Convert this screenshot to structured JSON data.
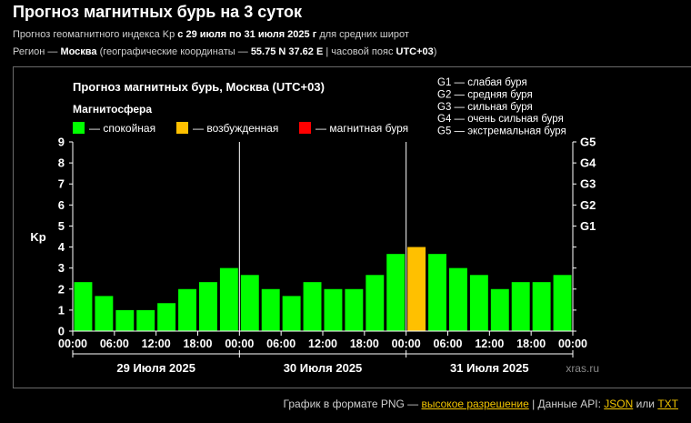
{
  "header": {
    "title": "Прогноз магнитных бурь на 3 суток",
    "line1_prefix": "Прогноз геомагнитного индекса Kp ",
    "line1_bold": "с 29 июля по 31 июля 2025 г",
    "line1_suffix": " для средних широт",
    "line2_prefix": "Регион — ",
    "line2_city": "Москва",
    "line2_mid": " (географические координаты — ",
    "line2_coords": "55.75 N 37.62 E",
    "line2_sep": " | часовой пояс ",
    "line2_tz": "UTC+03",
    "line2_end": ")"
  },
  "footer": {
    "png_text": "График в формате PNG — ",
    "png_link": "высокое разрешение",
    "api_text": "  |  Данные API: ",
    "json_link": "JSON",
    "or_text": " или ",
    "txt_link": "TXT"
  },
  "chart_data": {
    "type": "bar",
    "title": "Прогноз магнитных бурь, Москва (UTC+03)",
    "legend_title": "Магнитосфера",
    "legend": [
      {
        "label": "— спокойная",
        "color": "#00ff00"
      },
      {
        "label": "— возбужденная",
        "color": "#ffc000"
      },
      {
        "label": "— магнитная буря",
        "color": "#ff0000"
      }
    ],
    "storm_scale": [
      "G1 — слабая буря",
      "G2 — средняя буря",
      "G3 — сильная буря",
      "G4 — очень сильная буря",
      "G5 — экстремальная буря"
    ],
    "ylabel": "Kp",
    "ylim": [
      0,
      9
    ],
    "yticks": [
      "0",
      "1",
      "2",
      "3",
      "4",
      "5",
      "6",
      "7",
      "8",
      "9"
    ],
    "right_ticks": [
      {
        "label": "G1",
        "value": 5
      },
      {
        "label": "G2",
        "value": 6
      },
      {
        "label": "G3",
        "value": 7
      },
      {
        "label": "G4",
        "value": 8
      },
      {
        "label": "G5",
        "value": 9
      }
    ],
    "xticks": [
      "00:00",
      "06:00",
      "12:00",
      "18:00",
      "00:00",
      "06:00",
      "12:00",
      "18:00",
      "00:00",
      "06:00",
      "12:00",
      "18:00",
      "00:00"
    ],
    "days": [
      "29 Июля 2025",
      "30 Июля 2025",
      "31 Июля 2025"
    ],
    "values": [
      2.33,
      1.67,
      1,
      1,
      1.33,
      2,
      2.33,
      3,
      2.67,
      2,
      1.67,
      2.33,
      2,
      2,
      2.67,
      3.67,
      4,
      3.67,
      3,
      2.67,
      2,
      2.33,
      2.33,
      2.67
    ],
    "colors": {
      "quiet": "#00ff00",
      "active": "#ffc000",
      "storm": "#ff0000"
    },
    "watermark": "xras.ru",
    "grid": false
  }
}
